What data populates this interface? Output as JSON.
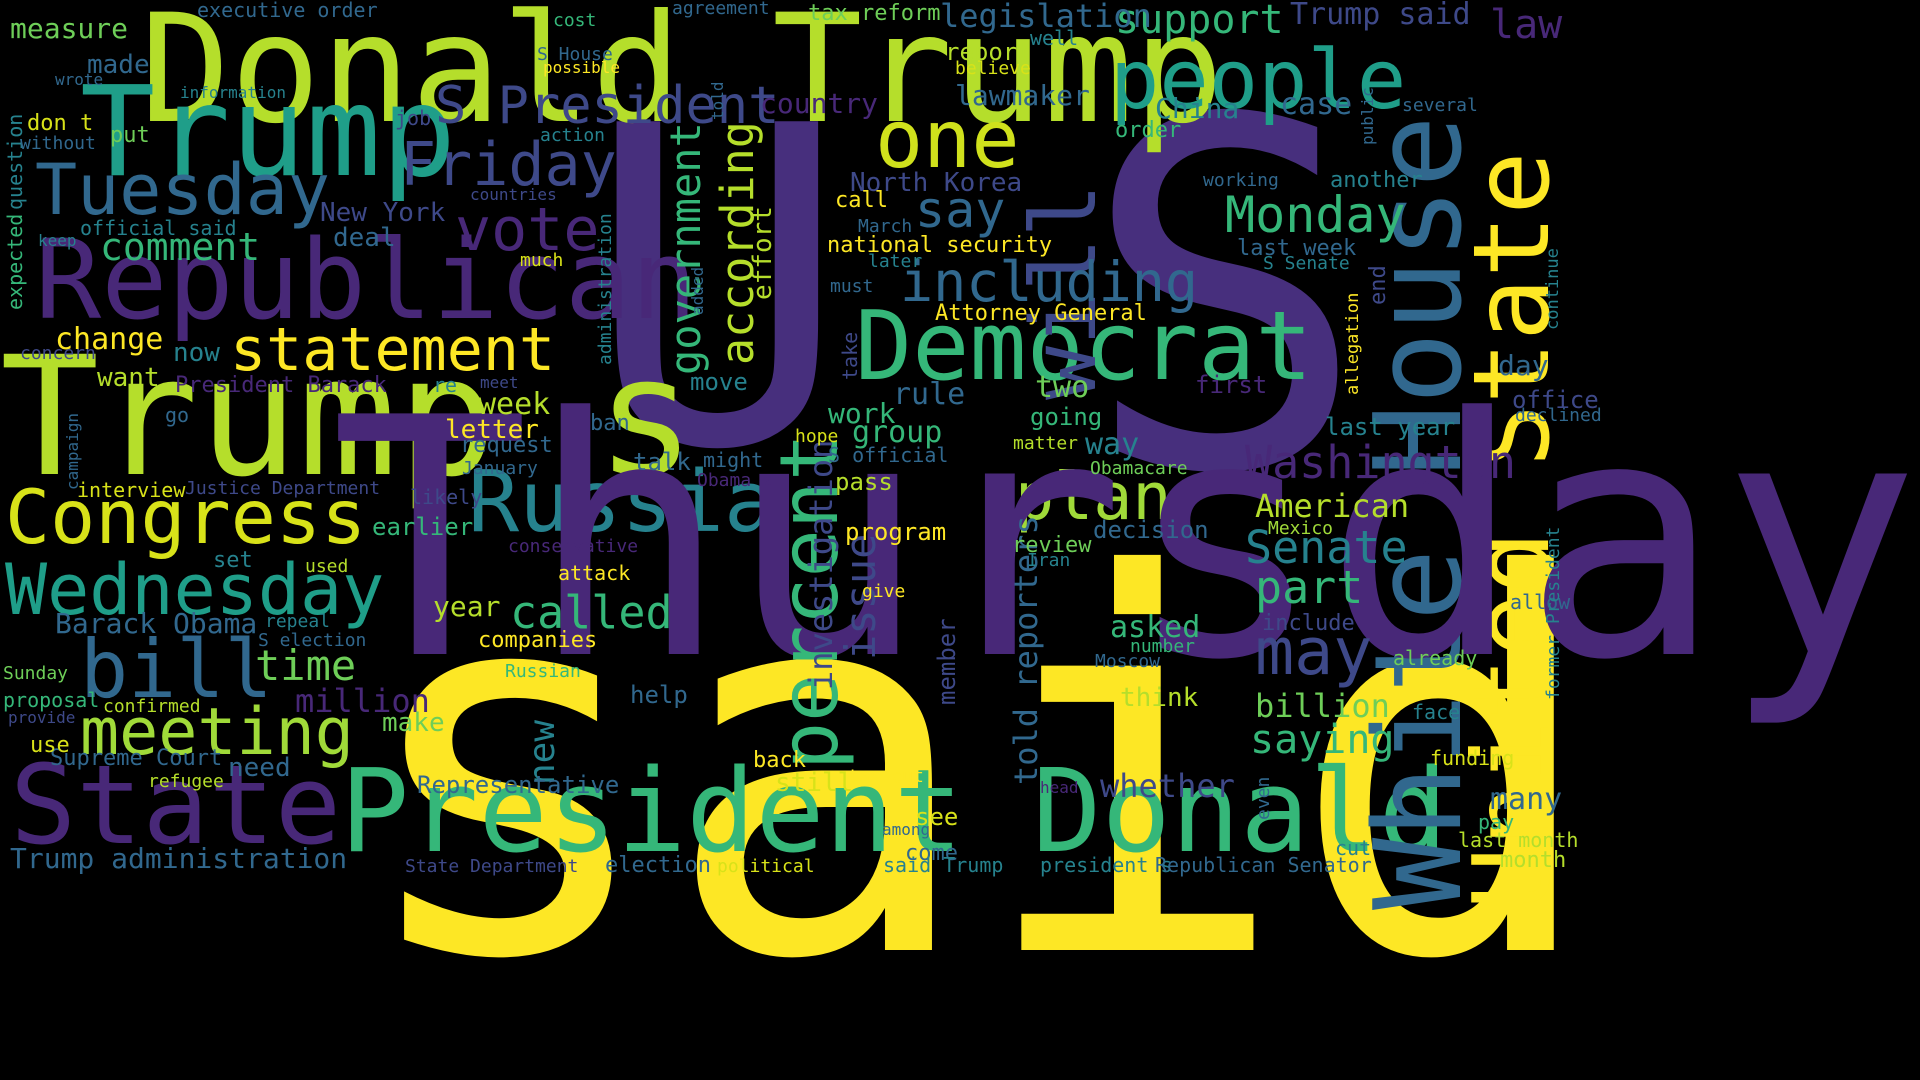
{
  "palette": {
    "background": "#000000",
    "yellow": "#fde725",
    "lime": "#b5de2b",
    "green": "#6ece58",
    "teal_green": "#35b779",
    "teal": "#1f9e89",
    "cyan_blue": "#26828e",
    "blue": "#31688e",
    "indigo": "#3e4989",
    "violet": "#482878",
    "dark_purple": "#440154"
  },
  "words": [
    {
      "text": "said",
      "color": "#fde725"
    },
    {
      "text": "U",
      "color": "#472f7d"
    },
    {
      "text": "S",
      "color": "#472f7d"
    },
    {
      "text": "Donald Trump",
      "color": "#b5de2b"
    },
    {
      "text": "Trump",
      "color": "#1f9e89"
    },
    {
      "text": "Trump s",
      "color": "#b5de2b"
    },
    {
      "text": "President Donald",
      "color": "#35b779"
    },
    {
      "text": "White House",
      "color": "#31688e"
    },
    {
      "text": "United State",
      "color": "#fde725"
    },
    {
      "text": "Republican",
      "color": "#482878"
    },
    {
      "text": "Democrat",
      "color": "#35b779"
    },
    {
      "text": "State",
      "color": "#482878"
    },
    {
      "text": "people",
      "color": "#1f9e89"
    },
    {
      "text": "will",
      "color": "#3e4989"
    },
    {
      "text": "one",
      "color": "#d0e11c"
    },
    {
      "text": "Tuesday",
      "color": "#31688e"
    },
    {
      "text": "S President",
      "color": "#3e4989"
    },
    {
      "text": "Congress",
      "color": "#d8e219"
    },
    {
      "text": "Russia",
      "color": "#26828e"
    },
    {
      "text": "statement",
      "color": "#fde725"
    },
    {
      "text": "Wednesday",
      "color": "#1f9e89"
    },
    {
      "text": "bill",
      "color": "#31688e"
    },
    {
      "text": "meeting",
      "color": "#a0da39"
    },
    {
      "text": "plan",
      "color": "#a0da39"
    },
    {
      "text": "Friday",
      "color": "#3e4989"
    },
    {
      "text": "vote",
      "color": "#482878"
    },
    {
      "text": "Thursday",
      "color": "#482878"
    },
    {
      "text": "percent",
      "color": "#35b779"
    },
    {
      "text": "Washington",
      "color": "#482878"
    },
    {
      "text": "including",
      "color": "#31688e"
    },
    {
      "text": "may",
      "color": "#3e4989"
    },
    {
      "text": "Monday",
      "color": "#35b779"
    },
    {
      "text": "Senate",
      "color": "#26828e"
    },
    {
      "text": "say",
      "color": "#31688e"
    },
    {
      "text": "part",
      "color": "#35b779"
    },
    {
      "text": "called",
      "color": "#35b779"
    },
    {
      "text": "comment",
      "color": "#35b779"
    },
    {
      "text": "time",
      "color": "#6ece58"
    },
    {
      "text": "support",
      "color": "#35b779"
    },
    {
      "text": "Trump said",
      "color": "#3e4989"
    },
    {
      "text": "law",
      "color": "#482878"
    },
    {
      "text": "legislation",
      "color": "#31688e"
    },
    {
      "text": "according",
      "color": "#b5de2b"
    },
    {
      "text": "government",
      "color": "#35b779"
    },
    {
      "text": "saying",
      "color": "#35b779"
    },
    {
      "text": "issue",
      "color": "#3e4989"
    },
    {
      "text": "new",
      "color": "#26828e"
    },
    {
      "text": "American",
      "color": "#b5de2b"
    },
    {
      "text": "investigation",
      "color": "#3e4989"
    },
    {
      "text": "told reporters",
      "color": "#31688e"
    },
    {
      "text": "whether",
      "color": "#3e4989"
    },
    {
      "text": "many",
      "color": "#31688e"
    },
    {
      "text": "billion",
      "color": "#6ece58"
    },
    {
      "text": "asked",
      "color": "#35b779"
    },
    {
      "text": "case",
      "color": "#31688e"
    },
    {
      "text": "China",
      "color": "#26828e"
    },
    {
      "text": "lawmaker",
      "color": "#31688e"
    },
    {
      "text": "country",
      "color": "#482878"
    },
    {
      "text": "North Korea",
      "color": "#3e4989"
    },
    {
      "text": "New York",
      "color": "#3e4989"
    },
    {
      "text": "deal",
      "color": "#31688e"
    },
    {
      "text": "effort",
      "color": "#b5de2b"
    },
    {
      "text": "Barack Obama",
      "color": "#31688e"
    },
    {
      "text": "million",
      "color": "#482878"
    },
    {
      "text": "Trump administration",
      "color": "#31688e"
    },
    {
      "text": "Supreme Court",
      "color": "#31688e"
    },
    {
      "text": "Representative",
      "color": "#31688e"
    },
    {
      "text": "election",
      "color": "#31688e"
    },
    {
      "text": "see",
      "color": "#d8e219"
    },
    {
      "text": "come",
      "color": "#31688e"
    },
    {
      "text": "said Trump",
      "color": "#26828e"
    },
    {
      "text": "president s",
      "color": "#26828e"
    },
    {
      "text": "Republican Senator",
      "color": "#31688e"
    },
    {
      "text": "cut",
      "color": "#26828e"
    },
    {
      "text": "month",
      "color": "#b5de2b"
    },
    {
      "text": "last month",
      "color": "#b5de2b"
    },
    {
      "text": "pay",
      "color": "#35b779"
    },
    {
      "text": "even",
      "color": "#31688e"
    },
    {
      "text": "funding",
      "color": "#d8e219"
    },
    {
      "text": "face",
      "color": "#26828e"
    },
    {
      "text": "already",
      "color": "#6ece58"
    },
    {
      "text": "allow",
      "color": "#31688e"
    },
    {
      "text": "former President",
      "color": "#26828e"
    },
    {
      "text": "declined",
      "color": "#31688e"
    },
    {
      "text": "office",
      "color": "#3e4989"
    },
    {
      "text": "day",
      "color": "#31688e"
    },
    {
      "text": "allegation",
      "color": "#fde725"
    },
    {
      "text": "continue",
      "color": "#26828e"
    },
    {
      "text": "end",
      "color": "#3e4989"
    },
    {
      "text": "last year",
      "color": "#26828e"
    },
    {
      "text": "first",
      "color": "#482878"
    },
    {
      "text": "going",
      "color": "#35b779"
    },
    {
      "text": "two",
      "color": "#6ece58"
    },
    {
      "text": "way",
      "color": "#26828e"
    },
    {
      "text": "Obamacare",
      "color": "#6ece58"
    },
    {
      "text": "decision",
      "color": "#31688e"
    },
    {
      "text": "review",
      "color": "#6ece58"
    },
    {
      "text": "Iran",
      "color": "#26828e"
    },
    {
      "text": "Mexico",
      "color": "#a0da39"
    },
    {
      "text": "include",
      "color": "#3e4989"
    },
    {
      "text": "number",
      "color": "#35b779"
    },
    {
      "text": "Moscow",
      "color": "#31688e"
    },
    {
      "text": "think",
      "color": "#b5de2b"
    },
    {
      "text": "rule",
      "color": "#31688e"
    },
    {
      "text": "Attorney General",
      "color": "#fde725"
    },
    {
      "text": "national security",
      "color": "#fde725"
    },
    {
      "text": "last week",
      "color": "#31688e"
    },
    {
      "text": "S Senate",
      "color": "#26828e"
    },
    {
      "text": "working",
      "color": "#31688e"
    },
    {
      "text": "another",
      "color": "#26828e"
    },
    {
      "text": "several",
      "color": "#31688e"
    },
    {
      "text": "public",
      "color": "#31688e"
    },
    {
      "text": "order",
      "color": "#35b779"
    },
    {
      "text": "report",
      "color": "#b5de2b"
    },
    {
      "text": "well",
      "color": "#26828e"
    },
    {
      "text": "believe",
      "color": "#d8e219"
    },
    {
      "text": "tax reform",
      "color": "#6ece58"
    },
    {
      "text": "agreement",
      "color": "#31688e"
    },
    {
      "text": "told",
      "color": "#31688e"
    },
    {
      "text": "cost",
      "color": "#35b779"
    },
    {
      "text": "S House",
      "color": "#31688e"
    },
    {
      "text": "possible",
      "color": "#fde725"
    },
    {
      "text": "executive order",
      "color": "#31688e"
    },
    {
      "text": "measure",
      "color": "#6ece58"
    },
    {
      "text": "made",
      "color": "#31688e"
    },
    {
      "text": "wrote",
      "color": "#31688e"
    },
    {
      "text": "information",
      "color": "#26828e"
    },
    {
      "text": "question",
      "color": "#26828e"
    },
    {
      "text": "expected",
      "color": "#35b779"
    },
    {
      "text": "don t",
      "color": "#d8e219"
    },
    {
      "text": "put",
      "color": "#6ece58"
    },
    {
      "text": "without",
      "color": "#31688e"
    },
    {
      "text": "job",
      "color": "#3e4989"
    },
    {
      "text": "action",
      "color": "#26828e"
    },
    {
      "text": "countries",
      "color": "#3e4989"
    },
    {
      "text": "official said",
      "color": "#26828e"
    },
    {
      "text": "keep",
      "color": "#26828e"
    },
    {
      "text": "much",
      "color": "#d8e219"
    },
    {
      "text": "administration",
      "color": "#26828e"
    },
    {
      "text": "added",
      "color": "#31688e"
    },
    {
      "text": "call",
      "color": "#fde725"
    },
    {
      "text": "March",
      "color": "#31688e"
    },
    {
      "text": "later",
      "color": "#26828e"
    },
    {
      "text": "must",
      "color": "#31688e"
    },
    {
      "text": "change",
      "color": "#fde725"
    },
    {
      "text": "now",
      "color": "#26828e"
    },
    {
      "text": "concern",
      "color": "#3e4989"
    },
    {
      "text": "want",
      "color": "#b5de2b"
    },
    {
      "text": "President Barack",
      "color": "#482878"
    },
    {
      "text": "re",
      "color": "#26828e"
    },
    {
      "text": "meet",
      "color": "#3e4989"
    },
    {
      "text": "move",
      "color": "#26828e"
    },
    {
      "text": "take",
      "color": "#3e4989"
    },
    {
      "text": "work",
      "color": "#35b779"
    },
    {
      "text": "group",
      "color": "#35b779"
    },
    {
      "text": "week",
      "color": "#b5de2b"
    },
    {
      "text": "letter",
      "color": "#fde725"
    },
    {
      "text": "request",
      "color": "#31688e"
    },
    {
      "text": "ban",
      "color": "#31688e"
    },
    {
      "text": "hope",
      "color": "#d8e219"
    },
    {
      "text": "matter",
      "color": "#b5de2b"
    },
    {
      "text": "S official",
      "color": "#31688e"
    },
    {
      "text": "might",
      "color": "#31688e"
    },
    {
      "text": "talk",
      "color": "#31688e"
    },
    {
      "text": "January",
      "color": "#31688e"
    },
    {
      "text": "go",
      "color": "#31688e"
    },
    {
      "text": "campaign",
      "color": "#31688e"
    },
    {
      "text": "interview",
      "color": "#d8e219"
    },
    {
      "text": "Justice Department",
      "color": "#3e4989"
    },
    {
      "text": "likely",
      "color": "#3e4989"
    },
    {
      "text": "Obama s",
      "color": "#482878"
    },
    {
      "text": "pass",
      "color": "#b5de2b"
    },
    {
      "text": "earlier",
      "color": "#35b779"
    },
    {
      "text": "program",
      "color": "#fde725"
    },
    {
      "text": "conservative",
      "color": "#482878"
    },
    {
      "text": "set",
      "color": "#26828e"
    },
    {
      "text": "used",
      "color": "#b5de2b"
    },
    {
      "text": "attack",
      "color": "#fde725"
    },
    {
      "text": "give",
      "color": "#fde725"
    },
    {
      "text": "year",
      "color": "#b5de2b"
    },
    {
      "text": "repeal",
      "color": "#26828e"
    },
    {
      "text": "S election",
      "color": "#31688e"
    },
    {
      "text": "companies",
      "color": "#fde725"
    },
    {
      "text": "Sunday",
      "color": "#6ece58"
    },
    {
      "text": "Russian",
      "color": "#35b779"
    },
    {
      "text": "proposal",
      "color": "#35b779"
    },
    {
      "text": "help",
      "color": "#31688e"
    },
    {
      "text": "confirmed",
      "color": "#b5de2b"
    },
    {
      "text": "provide",
      "color": "#3e4989"
    },
    {
      "text": "make",
      "color": "#6ece58"
    },
    {
      "text": "use",
      "color": "#d8e219"
    },
    {
      "text": "refugee",
      "color": "#b5de2b"
    },
    {
      "text": "need",
      "color": "#31688e"
    },
    {
      "text": "back",
      "color": "#fde725"
    },
    {
      "text": "still",
      "color": "#d8e219"
    },
    {
      "text": "tax cut",
      "color": "#fde725"
    },
    {
      "text": "among",
      "color": "#31688e"
    },
    {
      "text": "State Department",
      "color": "#3e4989"
    },
    {
      "text": "political",
      "color": "#d8e219"
    },
    {
      "text": "head",
      "color": "#482878"
    },
    {
      "text": "member",
      "color": "#3e4989"
    }
  ]
}
